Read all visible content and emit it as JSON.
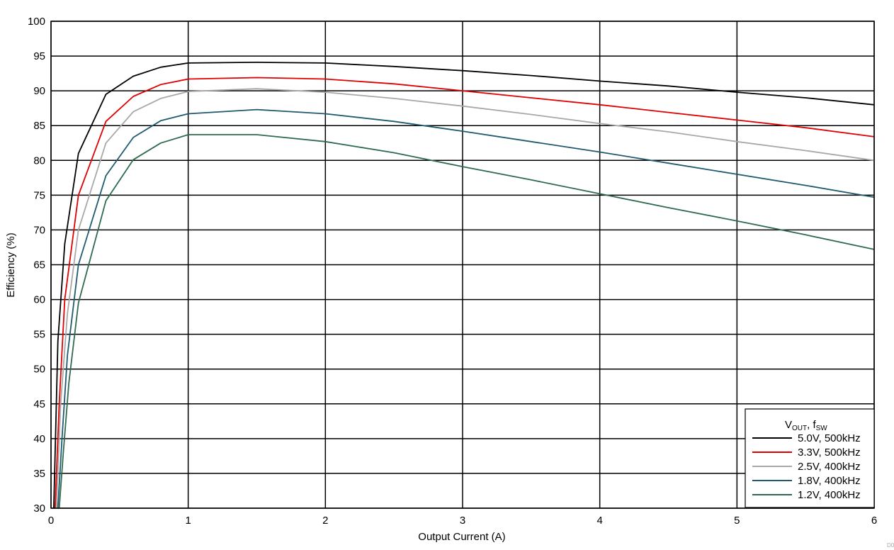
{
  "chart_data": {
    "type": "line",
    "xlabel": "Output Current (A)",
    "ylabel": "Efficiency (%)",
    "xlim": [
      0,
      6
    ],
    "ylim": [
      30,
      100
    ],
    "x_ticks": [
      0,
      1,
      2,
      3,
      4,
      5,
      6
    ],
    "y_ticks": [
      30,
      35,
      40,
      45,
      50,
      55,
      60,
      65,
      70,
      75,
      80,
      85,
      90,
      95,
      100
    ],
    "grid": true,
    "legend_position": "bottom-right",
    "legend_title": {
      "main": "V",
      "main_sub": "OUT",
      "sep": ", f",
      "sub": "SW"
    },
    "figure_code": "D0",
    "series": [
      {
        "name": "5.0V, 500kHz",
        "color": "#000000",
        "x": [
          0.02,
          0.05,
          0.1,
          0.2,
          0.4,
          0.6,
          0.8,
          1.0,
          1.5,
          2.0,
          2.5,
          3.0,
          3.5,
          4.0,
          4.5,
          5.0,
          5.5,
          6.0
        ],
        "y": [
          30,
          54,
          68,
          81,
          89.5,
          92.1,
          93.4,
          94.0,
          94.1,
          94.0,
          93.5,
          92.9,
          92.2,
          91.4,
          90.7,
          89.8,
          89.0,
          88.0
        ]
      },
      {
        "name": "3.3V, 500kHz",
        "color": "#e00000",
        "x": [
          0.03,
          0.06,
          0.1,
          0.2,
          0.4,
          0.6,
          0.8,
          1.0,
          1.5,
          2.0,
          2.5,
          3.0,
          3.5,
          4.0,
          4.5,
          5.0,
          5.5,
          6.0
        ],
        "y": [
          30,
          45,
          60,
          75,
          85.6,
          89.2,
          90.9,
          91.7,
          91.9,
          91.7,
          91.0,
          90.0,
          89.0,
          88.0,
          86.9,
          85.8,
          84.7,
          83.4
        ]
      },
      {
        "name": "2.5V, 400kHz",
        "color": "#a8a8a8",
        "x": [
          0.04,
          0.07,
          0.12,
          0.2,
          0.4,
          0.6,
          0.8,
          1.0,
          1.5,
          2.0,
          2.5,
          3.0,
          3.5,
          4.0,
          4.5,
          5.0,
          5.5,
          6.0
        ],
        "y": [
          30,
          45,
          58,
          70,
          82.5,
          87.0,
          88.9,
          89.9,
          90.3,
          89.8,
          88.9,
          87.8,
          86.6,
          85.3,
          84.1,
          82.7,
          81.4,
          80.0
        ]
      },
      {
        "name": "1.8V, 400kHz",
        "color": "#1f5a6e",
        "x": [
          0.05,
          0.08,
          0.12,
          0.2,
          0.4,
          0.6,
          0.8,
          1.0,
          1.5,
          2.0,
          2.5,
          3.0,
          3.5,
          4.0,
          4.5,
          5.0,
          5.5,
          6.0
        ],
        "y": [
          30,
          40,
          52,
          65,
          77.8,
          83.3,
          85.7,
          86.7,
          87.3,
          86.7,
          85.6,
          84.2,
          82.7,
          81.2,
          79.6,
          78.0,
          76.4,
          74.7
        ]
      },
      {
        "name": "1.2V, 400kHz",
        "color": "#2e6b4e",
        "x": [
          0.06,
          0.09,
          0.13,
          0.2,
          0.4,
          0.6,
          0.8,
          1.0,
          1.5,
          2.0,
          2.5,
          3.0,
          3.5,
          4.0,
          4.5,
          5.0,
          5.5,
          6.0
        ],
        "y": [
          30,
          38,
          48,
          59.5,
          74.2,
          80.1,
          82.5,
          83.7,
          83.7,
          82.7,
          81.1,
          79.1,
          77.2,
          75.2,
          73.2,
          71.3,
          69.3,
          67.2
        ]
      }
    ]
  }
}
